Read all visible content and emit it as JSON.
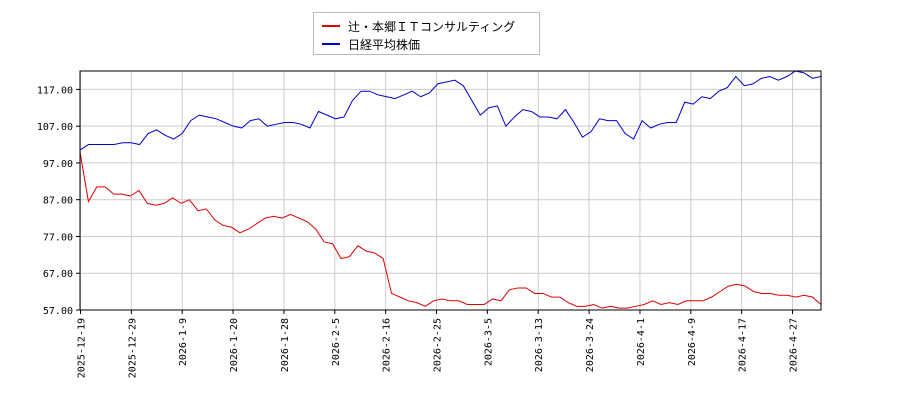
{
  "chart_data": {
    "type": "line",
    "legend": {
      "placement": "top-center"
    },
    "grid": true,
    "ylim": [
      57,
      122
    ],
    "y_ticks": [
      "117.00",
      "107.00",
      "97.00",
      "87.00",
      "77.00",
      "67.00",
      "57.00"
    ],
    "x_ticks": [
      "2025-12-19",
      "2025-12-29",
      "2026-1-9",
      "2026-1-20",
      "2026-1-28",
      "2026-2-5",
      "2026-2-16",
      "2026-2-25",
      "2026-3-5",
      "2026-3-13",
      "2026-3-24",
      "2026-4-1",
      "2026-4-9",
      "2026-4-17",
      "2026-4-27"
    ],
    "x_tick_index": [
      0,
      10,
      20,
      30,
      40,
      50,
      60,
      70,
      80,
      90,
      100,
      110,
      120,
      130,
      140
    ],
    "series": [
      {
        "name": "辻・本郷ＩＴコンサルティング",
        "color": "#dd0000",
        "values": [
          100,
          86.5,
          90.5,
          90.5,
          88.5,
          88.5,
          88,
          89.5,
          86,
          85.5,
          86,
          87.5,
          86,
          87,
          84,
          84.5,
          81.5,
          80,
          79.5,
          78,
          79,
          80.5,
          82,
          82.5,
          82,
          83,
          82,
          81,
          79,
          75.5,
          75,
          71,
          71.5,
          74.5,
          73,
          72.5,
          71,
          61.5,
          60.5,
          59.5,
          59,
          58,
          59.5,
          60,
          59.5,
          59.5,
          58.5,
          58.5,
          58.5,
          60,
          59.5,
          62.5,
          63,
          63,
          61.5,
          61.5,
          60.5,
          60.5,
          59,
          58,
          58,
          58.5,
          57.5,
          58,
          57.5,
          57.5,
          58,
          58.5,
          59.5,
          58.5,
          59,
          58.5,
          59.5,
          59.5,
          59.5,
          60.5,
          62,
          63.5,
          64,
          63.5,
          62,
          61.5,
          61.5,
          61,
          61,
          60.5,
          61,
          60.5,
          58.5
        ],
        "dense_x_span": [
          0,
          146
        ]
      },
      {
        "name": "日経平均株価",
        "color": "#0000cc",
        "values": [
          100.5,
          102,
          102,
          102,
          102,
          102.5,
          102.5,
          102,
          105,
          106,
          104.5,
          103.5,
          105,
          108.5,
          110,
          109.5,
          109,
          108,
          107,
          106.5,
          108.5,
          109,
          107,
          107.5,
          108,
          108,
          107.5,
          106.5,
          111,
          110,
          109,
          109.5,
          114,
          116.5,
          116.5,
          115.5,
          115,
          114.5,
          115.5,
          116.5,
          115,
          116,
          118.5,
          119,
          119.5,
          118,
          114,
          110,
          112,
          112.5,
          107,
          109.5,
          111.5,
          111,
          109.5,
          109.5,
          109,
          111.5,
          108,
          104,
          105.5,
          109,
          108.5,
          108.5,
          105,
          103.5,
          108.5,
          106.5,
          107.5,
          108,
          108,
          113.5,
          113,
          115,
          114.5,
          116.5,
          117.5,
          120.5,
          118,
          118.5,
          120,
          120.5,
          119.5,
          120.5,
          122,
          121.5,
          120,
          120.5
        ],
        "dense_x_span": [
          0,
          146
        ]
      }
    ]
  }
}
